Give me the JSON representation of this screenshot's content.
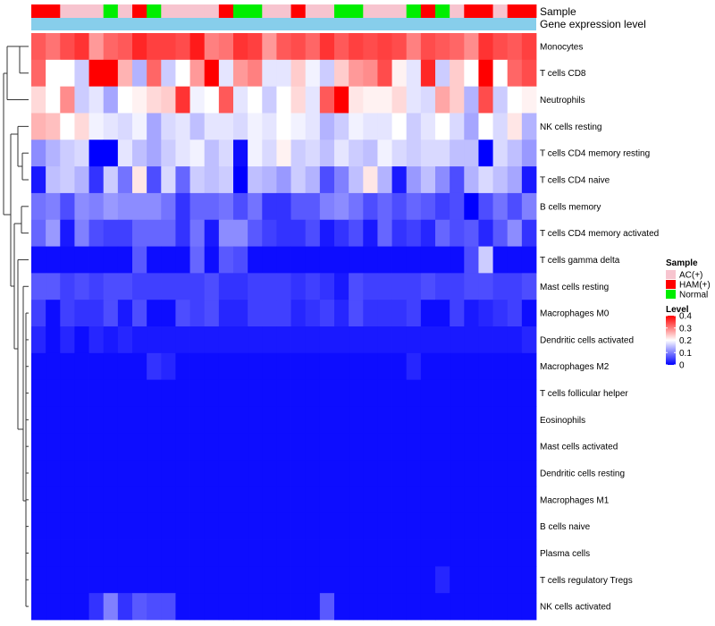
{
  "chart_data": {
    "type": "heatmap",
    "title": "",
    "annotation_labels": {
      "sample": "Sample",
      "gene_expression": "Gene expression level"
    },
    "rows": [
      "Monocytes",
      "T cells CD8",
      "Neutrophils",
      "NK cells resting",
      "T cells CD4 memory resting",
      "T cells CD4 naive",
      "B cells memory",
      "T cells CD4 memory activated",
      "T cells gamma delta",
      "Mast cells resting",
      "Macrophages M0",
      "Dendritic cells activated",
      "Macrophages M2",
      "T cells follicular helper",
      "Eosinophils",
      "Mast cells activated",
      "Dendritic cells resting",
      "Macrophages M1",
      "B cells naive",
      "Plasma cells",
      "T cells regulatory  Tregs",
      "NK cells activated"
    ],
    "sample_groups": [
      "H",
      "H",
      "A",
      "A",
      "A",
      "N",
      "A",
      "H",
      "N",
      "A",
      "A",
      "A",
      "A",
      "H",
      "N",
      "N",
      "A",
      "A",
      "H",
      "A",
      "A",
      "N",
      "N",
      "A",
      "A",
      "A",
      "N",
      "H",
      "N",
      "A",
      "H",
      "H",
      "A",
      "H",
      "H"
    ],
    "legend": {
      "sample_title": "Sample",
      "sample_entries": [
        {
          "key": "A",
          "label": "AC(+)",
          "color": "#f7c4cf"
        },
        {
          "key": "H",
          "label": "HAM(+)",
          "color": "#ff0000"
        },
        {
          "key": "N",
          "label": "Normal",
          "color": "#00ee00"
        }
      ],
      "level_title": "Level",
      "level_ticks": [
        {
          "value": 0.4,
          "label": "0.4"
        },
        {
          "value": 0.3,
          "label": "0.3"
        },
        {
          "value": 0.2,
          "label": "0.2"
        },
        {
          "value": 0.1,
          "label": "0.1"
        },
        {
          "value": 0.0,
          "label": "0"
        }
      ],
      "position": "right"
    },
    "color_scale": {
      "low": "#0000ff",
      "mid": "#ffffff",
      "high": "#ff0000",
      "min": 0,
      "mid_value": 0.2,
      "max": 0.4
    },
    "gene_expression_color": "#87ceeb",
    "values": [
      [
        0.33,
        0.31,
        0.34,
        0.36,
        0.28,
        0.32,
        0.33,
        0.37,
        0.35,
        0.35,
        0.34,
        0.38,
        0.3,
        0.31,
        0.36,
        0.35,
        0.28,
        0.33,
        0.34,
        0.32,
        0.36,
        0.33,
        0.35,
        0.34,
        0.35,
        0.34,
        0.3,
        0.34,
        0.33,
        0.32,
        0.29,
        0.36,
        0.34,
        0.33,
        0.35
      ],
      [
        0.32,
        0.2,
        0.2,
        0.16,
        0.4,
        0.4,
        0.26,
        0.14,
        0.32,
        0.16,
        0.2,
        0.28,
        0.4,
        0.18,
        0.28,
        0.3,
        0.18,
        0.18,
        0.24,
        0.19,
        0.16,
        0.24,
        0.28,
        0.29,
        0.34,
        0.21,
        0.18,
        0.37,
        0.16,
        0.24,
        0.2,
        0.4,
        0.2,
        0.32,
        0.34
      ],
      [
        0.23,
        0.2,
        0.29,
        0.16,
        0.18,
        0.13,
        0.2,
        0.21,
        0.23,
        0.24,
        0.36,
        0.19,
        0.2,
        0.33,
        0.18,
        0.2,
        0.16,
        0.2,
        0.23,
        0.18,
        0.33,
        0.4,
        0.22,
        0.21,
        0.21,
        0.23,
        0.18,
        0.17,
        0.27,
        0.24,
        0.14,
        0.34,
        0.16,
        0.2,
        0.21
      ],
      [
        0.26,
        0.25,
        0.2,
        0.23,
        0.19,
        0.18,
        0.17,
        0.19,
        0.13,
        0.17,
        0.18,
        0.15,
        0.18,
        0.18,
        0.17,
        0.19,
        0.18,
        0.2,
        0.19,
        0.18,
        0.14,
        0.16,
        0.19,
        0.18,
        0.18,
        0.2,
        0.16,
        0.18,
        0.2,
        0.17,
        0.13,
        0.2,
        0.17,
        0.22,
        0.14
      ],
      [
        0.11,
        0.14,
        0.16,
        0.17,
        0.0,
        0.0,
        0.18,
        0.15,
        0.13,
        0.16,
        0.18,
        0.19,
        0.15,
        0.17,
        0.01,
        0.19,
        0.17,
        0.21,
        0.16,
        0.17,
        0.15,
        0.18,
        0.16,
        0.15,
        0.19,
        0.17,
        0.16,
        0.17,
        0.17,
        0.15,
        0.15,
        0.0,
        0.17,
        0.15,
        0.12
      ],
      [
        0.02,
        0.15,
        0.16,
        0.14,
        0.04,
        0.16,
        0.09,
        0.22,
        0.06,
        0.17,
        0.08,
        0.16,
        0.15,
        0.16,
        0.0,
        0.15,
        0.14,
        0.12,
        0.16,
        0.14,
        0.06,
        0.1,
        0.15,
        0.22,
        0.14,
        0.02,
        0.12,
        0.15,
        0.11,
        0.06,
        0.14,
        0.17,
        0.15,
        0.13,
        0.02
      ],
      [
        0.09,
        0.1,
        0.06,
        0.11,
        0.1,
        0.12,
        0.11,
        0.11,
        0.11,
        0.09,
        0.04,
        0.08,
        0.08,
        0.09,
        0.06,
        0.09,
        0.04,
        0.04,
        0.07,
        0.07,
        0.1,
        0.11,
        0.09,
        0.06,
        0.08,
        0.06,
        0.08,
        0.07,
        0.05,
        0.06,
        0.0,
        0.06,
        0.09,
        0.06,
        0.1
      ],
      [
        0.08,
        0.12,
        0.02,
        0.1,
        0.06,
        0.05,
        0.05,
        0.08,
        0.08,
        0.08,
        0.04,
        0.09,
        0.02,
        0.11,
        0.11,
        0.07,
        0.05,
        0.04,
        0.04,
        0.06,
        0.02,
        0.04,
        0.06,
        0.02,
        0.08,
        0.04,
        0.05,
        0.03,
        0.08,
        0.06,
        0.07,
        0.03,
        0.07,
        0.11,
        0.04
      ],
      [
        0.01,
        0.01,
        0.01,
        0.01,
        0.01,
        0.01,
        0.01,
        0.07,
        0.01,
        0.01,
        0.01,
        0.08,
        0.01,
        0.07,
        0.06,
        0.01,
        0.01,
        0.01,
        0.01,
        0.01,
        0.01,
        0.01,
        0.01,
        0.01,
        0.01,
        0.01,
        0.01,
        0.01,
        0.01,
        0.01,
        0.06,
        0.16,
        0.01,
        0.01,
        0.01
      ],
      [
        0.07,
        0.07,
        0.05,
        0.06,
        0.05,
        0.06,
        0.06,
        0.05,
        0.05,
        0.05,
        0.05,
        0.05,
        0.06,
        0.04,
        0.04,
        0.05,
        0.05,
        0.05,
        0.04,
        0.05,
        0.04,
        0.02,
        0.06,
        0.05,
        0.05,
        0.05,
        0.05,
        0.06,
        0.05,
        0.05,
        0.06,
        0.06,
        0.05,
        0.05,
        0.06
      ],
      [
        0.05,
        0.01,
        0.05,
        0.04,
        0.04,
        0.06,
        0.02,
        0.06,
        0.01,
        0.01,
        0.06,
        0.05,
        0.06,
        0.03,
        0.03,
        0.05,
        0.05,
        0.05,
        0.03,
        0.04,
        0.05,
        0.03,
        0.06,
        0.04,
        0.04,
        0.04,
        0.05,
        0.01,
        0.01,
        0.05,
        0.02,
        0.03,
        0.04,
        0.05,
        0.01
      ],
      [
        0.03,
        0.01,
        0.03,
        0.01,
        0.03,
        0.02,
        0.03,
        0.02,
        0.02,
        0.02,
        0.02,
        0.02,
        0.02,
        0.02,
        0.02,
        0.02,
        0.02,
        0.02,
        0.02,
        0.02,
        0.02,
        0.02,
        0.02,
        0.02,
        0.02,
        0.02,
        0.02,
        0.02,
        0.02,
        0.02,
        0.02,
        0.02,
        0.02,
        0.02,
        0.03
      ],
      [
        0.01,
        0.01,
        0.01,
        0.01,
        0.01,
        0.01,
        0.01,
        0.01,
        0.04,
        0.03,
        0.01,
        0.01,
        0.01,
        0.01,
        0.01,
        0.01,
        0.01,
        0.01,
        0.01,
        0.01,
        0.01,
        0.01,
        0.01,
        0.01,
        0.01,
        0.01,
        0.03,
        0.01,
        0.01,
        0.01,
        0.01,
        0.01,
        0.01,
        0.01,
        0.01
      ],
      [
        0.01,
        0.01,
        0.01,
        0.01,
        0.01,
        0.01,
        0.01,
        0.01,
        0.01,
        0.01,
        0.01,
        0.01,
        0.01,
        0.01,
        0.01,
        0.01,
        0.01,
        0.01,
        0.01,
        0.01,
        0.01,
        0.01,
        0.01,
        0.01,
        0.01,
        0.01,
        0.01,
        0.01,
        0.01,
        0.01,
        0.01,
        0.01,
        0.01,
        0.01,
        0.01
      ],
      [
        0.01,
        0.01,
        0.01,
        0.01,
        0.01,
        0.01,
        0.01,
        0.01,
        0.01,
        0.01,
        0.01,
        0.01,
        0.01,
        0.01,
        0.01,
        0.01,
        0.01,
        0.01,
        0.01,
        0.01,
        0.01,
        0.01,
        0.01,
        0.01,
        0.01,
        0.01,
        0.01,
        0.01,
        0.01,
        0.01,
        0.01,
        0.01,
        0.01,
        0.01,
        0.01
      ],
      [
        0.01,
        0.01,
        0.01,
        0.01,
        0.01,
        0.01,
        0.01,
        0.01,
        0.01,
        0.01,
        0.01,
        0.01,
        0.01,
        0.01,
        0.01,
        0.01,
        0.01,
        0.01,
        0.01,
        0.01,
        0.01,
        0.01,
        0.01,
        0.01,
        0.01,
        0.01,
        0.01,
        0.01,
        0.01,
        0.01,
        0.01,
        0.01,
        0.01,
        0.01,
        0.01
      ],
      [
        0.01,
        0.01,
        0.01,
        0.01,
        0.01,
        0.01,
        0.01,
        0.01,
        0.01,
        0.01,
        0.01,
        0.01,
        0.01,
        0.01,
        0.01,
        0.01,
        0.01,
        0.01,
        0.01,
        0.01,
        0.01,
        0.01,
        0.01,
        0.01,
        0.01,
        0.01,
        0.01,
        0.01,
        0.01,
        0.01,
        0.01,
        0.01,
        0.01,
        0.01,
        0.01
      ],
      [
        0.01,
        0.01,
        0.01,
        0.01,
        0.01,
        0.01,
        0.01,
        0.01,
        0.01,
        0.01,
        0.01,
        0.01,
        0.01,
        0.01,
        0.01,
        0.01,
        0.01,
        0.01,
        0.01,
        0.01,
        0.01,
        0.01,
        0.01,
        0.01,
        0.01,
        0.01,
        0.01,
        0.01,
        0.01,
        0.01,
        0.01,
        0.01,
        0.01,
        0.01,
        0.01
      ],
      [
        0.01,
        0.01,
        0.01,
        0.01,
        0.01,
        0.01,
        0.01,
        0.01,
        0.01,
        0.01,
        0.01,
        0.01,
        0.01,
        0.01,
        0.01,
        0.01,
        0.01,
        0.01,
        0.01,
        0.01,
        0.01,
        0.01,
        0.01,
        0.01,
        0.01,
        0.01,
        0.01,
        0.01,
        0.01,
        0.01,
        0.01,
        0.01,
        0.01,
        0.01,
        0.01
      ],
      [
        0.01,
        0.01,
        0.01,
        0.01,
        0.01,
        0.01,
        0.01,
        0.01,
        0.01,
        0.01,
        0.01,
        0.01,
        0.01,
        0.01,
        0.01,
        0.01,
        0.01,
        0.01,
        0.01,
        0.01,
        0.01,
        0.01,
        0.01,
        0.01,
        0.01,
        0.01,
        0.01,
        0.01,
        0.01,
        0.01,
        0.01,
        0.01,
        0.01,
        0.01,
        0.01
      ],
      [
        0.01,
        0.01,
        0.01,
        0.01,
        0.01,
        0.01,
        0.01,
        0.01,
        0.01,
        0.01,
        0.01,
        0.01,
        0.01,
        0.01,
        0.01,
        0.01,
        0.01,
        0.01,
        0.01,
        0.01,
        0.01,
        0.01,
        0.01,
        0.01,
        0.01,
        0.01,
        0.01,
        0.01,
        0.03,
        0.01,
        0.01,
        0.01,
        0.01,
        0.01,
        0.01
      ],
      [
        0.01,
        0.01,
        0.01,
        0.01,
        0.04,
        0.1,
        0.04,
        0.07,
        0.06,
        0.06,
        0.01,
        0.01,
        0.01,
        0.01,
        0.01,
        0.01,
        0.01,
        0.01,
        0.01,
        0.01,
        0.07,
        0.01,
        0.01,
        0.01,
        0.01,
        0.01,
        0.01,
        0.01,
        0.01,
        0.01,
        0.01,
        0.01,
        0.01,
        0.01,
        0.01
      ]
    ],
    "xlabel": "",
    "ylabel": ""
  }
}
